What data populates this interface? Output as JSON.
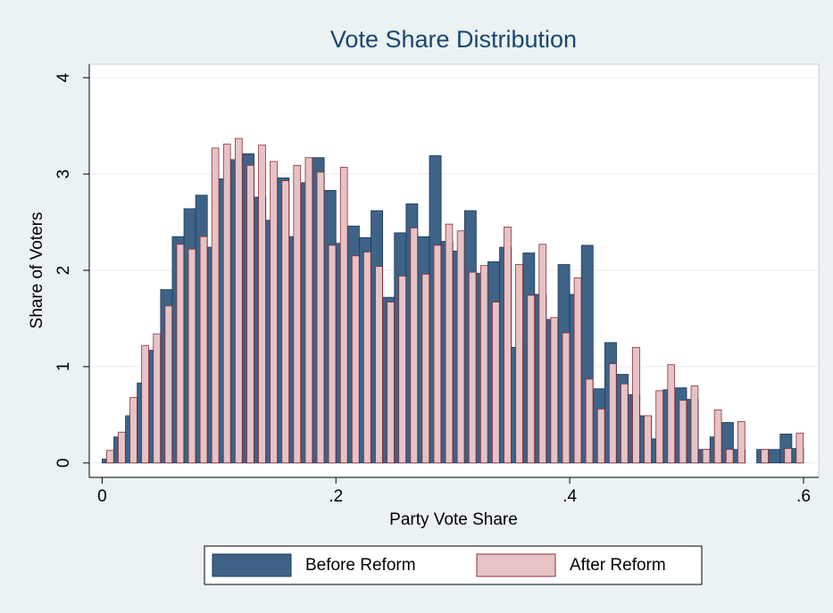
{
  "chart_data": {
    "type": "histogram",
    "title": "Vote Share Distribution",
    "x_label": "Party Vote Share",
    "y_label": "Share of Voters",
    "bins": [
      0,
      0.01,
      0.02,
      0.03,
      0.04,
      0.05,
      0.06,
      0.07,
      0.08,
      0.09,
      0.1,
      0.11,
      0.12,
      0.13,
      0.14,
      0.15,
      0.16,
      0.17,
      0.18,
      0.19,
      0.2,
      0.21,
      0.22,
      0.23,
      0.24,
      0.25,
      0.26,
      0.27,
      0.28,
      0.29,
      0.3,
      0.31,
      0.32,
      0.33,
      0.34,
      0.35,
      0.36,
      0.37,
      0.38,
      0.39,
      0.4,
      0.41,
      0.42,
      0.43,
      0.44,
      0.45,
      0.46,
      0.47,
      0.48,
      0.49,
      0.5,
      0.51,
      0.52,
      0.53,
      0.54,
      0.55,
      0.56,
      0.57,
      0.58,
      0.59,
      0.6
    ],
    "series": [
      {
        "name": "Before Reform",
        "color": "#3e6387",
        "edge": "#1a3a5a",
        "values": [
          0.04,
          0.27,
          0.49,
          0.83,
          1.17,
          1.8,
          2.35,
          2.64,
          2.78,
          2.24,
          2.95,
          3.15,
          3.21,
          2.76,
          2.52,
          2.96,
          2.35,
          2.91,
          3.17,
          2.83,
          2.28,
          2.46,
          2.34,
          2.62,
          1.72,
          2.39,
          2.69,
          2.35,
          3.19,
          2.3,
          2.2,
          2.62,
          1.97,
          2.09,
          2.24,
          1.2,
          2.18,
          1.75,
          1.49,
          2.06,
          1.75,
          2.26,
          0.77,
          1.25,
          0.92,
          0.71,
          0.49,
          0.25,
          0.76,
          0.78,
          0.66,
          0.14,
          0.27,
          0.42,
          0.14,
          0,
          0.14,
          0.14,
          0.3,
          0.15
        ]
      },
      {
        "name": "After Reform",
        "color": "#e6c3c5",
        "edge": "#8e2f38",
        "values": [
          0.13,
          0.32,
          0.68,
          1.22,
          1.34,
          1.63,
          2.27,
          2.22,
          2.35,
          3.27,
          3.31,
          3.37,
          3.09,
          3.3,
          3.13,
          2.93,
          3.09,
          3.17,
          3.02,
          2.26,
          3.07,
          2.15,
          2.19,
          2.04,
          1.67,
          1.94,
          2.44,
          1.96,
          2.26,
          2.48,
          2.41,
          1.98,
          2.05,
          1.67,
          2.45,
          2.06,
          1.74,
          2.27,
          1.51,
          1.35,
          1.92,
          0.87,
          0.56,
          1.03,
          0.82,
          1.2,
          0.49,
          0.75,
          1.02,
          0.65,
          0.8,
          0.14,
          0.55,
          0.14,
          0.43,
          0,
          0.14,
          0,
          0.15,
          0.31
        ]
      }
    ],
    "xlim": [
      -0.011,
      0.613
    ],
    "xticks": [
      0,
      {
        "value": 0.2,
        "label": ".2"
      },
      {
        "value": 0.4,
        "label": ".4"
      },
      {
        "value": 0.6,
        "label": ".6"
      }
    ],
    "ylim": [
      -0.15,
      4.14
    ],
    "yticks": [
      0,
      1,
      2,
      3,
      4
    ],
    "grid": true,
    "legend": "bottom"
  }
}
